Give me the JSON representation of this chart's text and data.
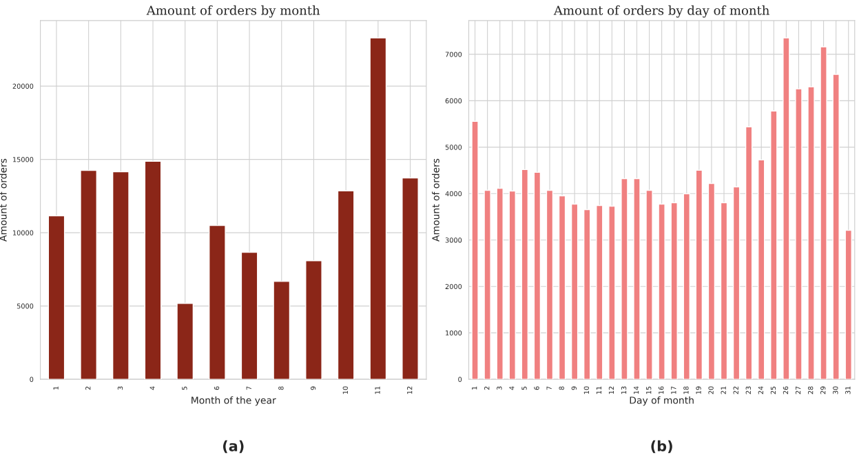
{
  "chart_data": [
    {
      "type": "bar",
      "title": "Amount of orders by month",
      "xlabel": "Month of the year",
      "ylabel": "Amount of orders",
      "categories": [
        "1",
        "2",
        "3",
        "4",
        "5",
        "6",
        "7",
        "8",
        "9",
        "10",
        "11",
        "12"
      ],
      "values": [
        11150,
        14250,
        14160,
        14870,
        5180,
        10490,
        8660,
        6680,
        8090,
        12850,
        23290,
        13740
      ],
      "color": "#8b2618",
      "ylim": [
        0,
        24470
      ],
      "yticks": [
        0,
        5000,
        10000,
        15000,
        20000
      ],
      "grid": true,
      "annotations": [
        "(a)"
      ]
    },
    {
      "type": "bar",
      "title": "Amount of orders by day of month",
      "xlabel": "Day of month",
      "ylabel": "Amount of orders",
      "categories": [
        "1",
        "2",
        "3",
        "4",
        "5",
        "6",
        "7",
        "8",
        "9",
        "10",
        "11",
        "12",
        "13",
        "14",
        "15",
        "16",
        "17",
        "18",
        "19",
        "20",
        "21",
        "22",
        "23",
        "24",
        "25",
        "26",
        "27",
        "28",
        "29",
        "30",
        "31"
      ],
      "values": [
        5557,
        4071,
        4116,
        4056,
        4517,
        4458,
        4071,
        3952,
        3774,
        3655,
        3744,
        3730,
        4324,
        4324,
        4071,
        3774,
        3804,
        3997,
        4502,
        4220,
        3804,
        4146,
        5438,
        4725,
        5780,
        7355,
        6256,
        6300,
        7162,
        6568,
        3210
      ],
      "color": "#f08080",
      "ylim": [
        0,
        7727
      ],
      "yticks": [
        0,
        1000,
        2000,
        3000,
        4000,
        5000,
        6000,
        7000
      ],
      "grid": true,
      "annotations": [
        "(b)"
      ]
    }
  ]
}
